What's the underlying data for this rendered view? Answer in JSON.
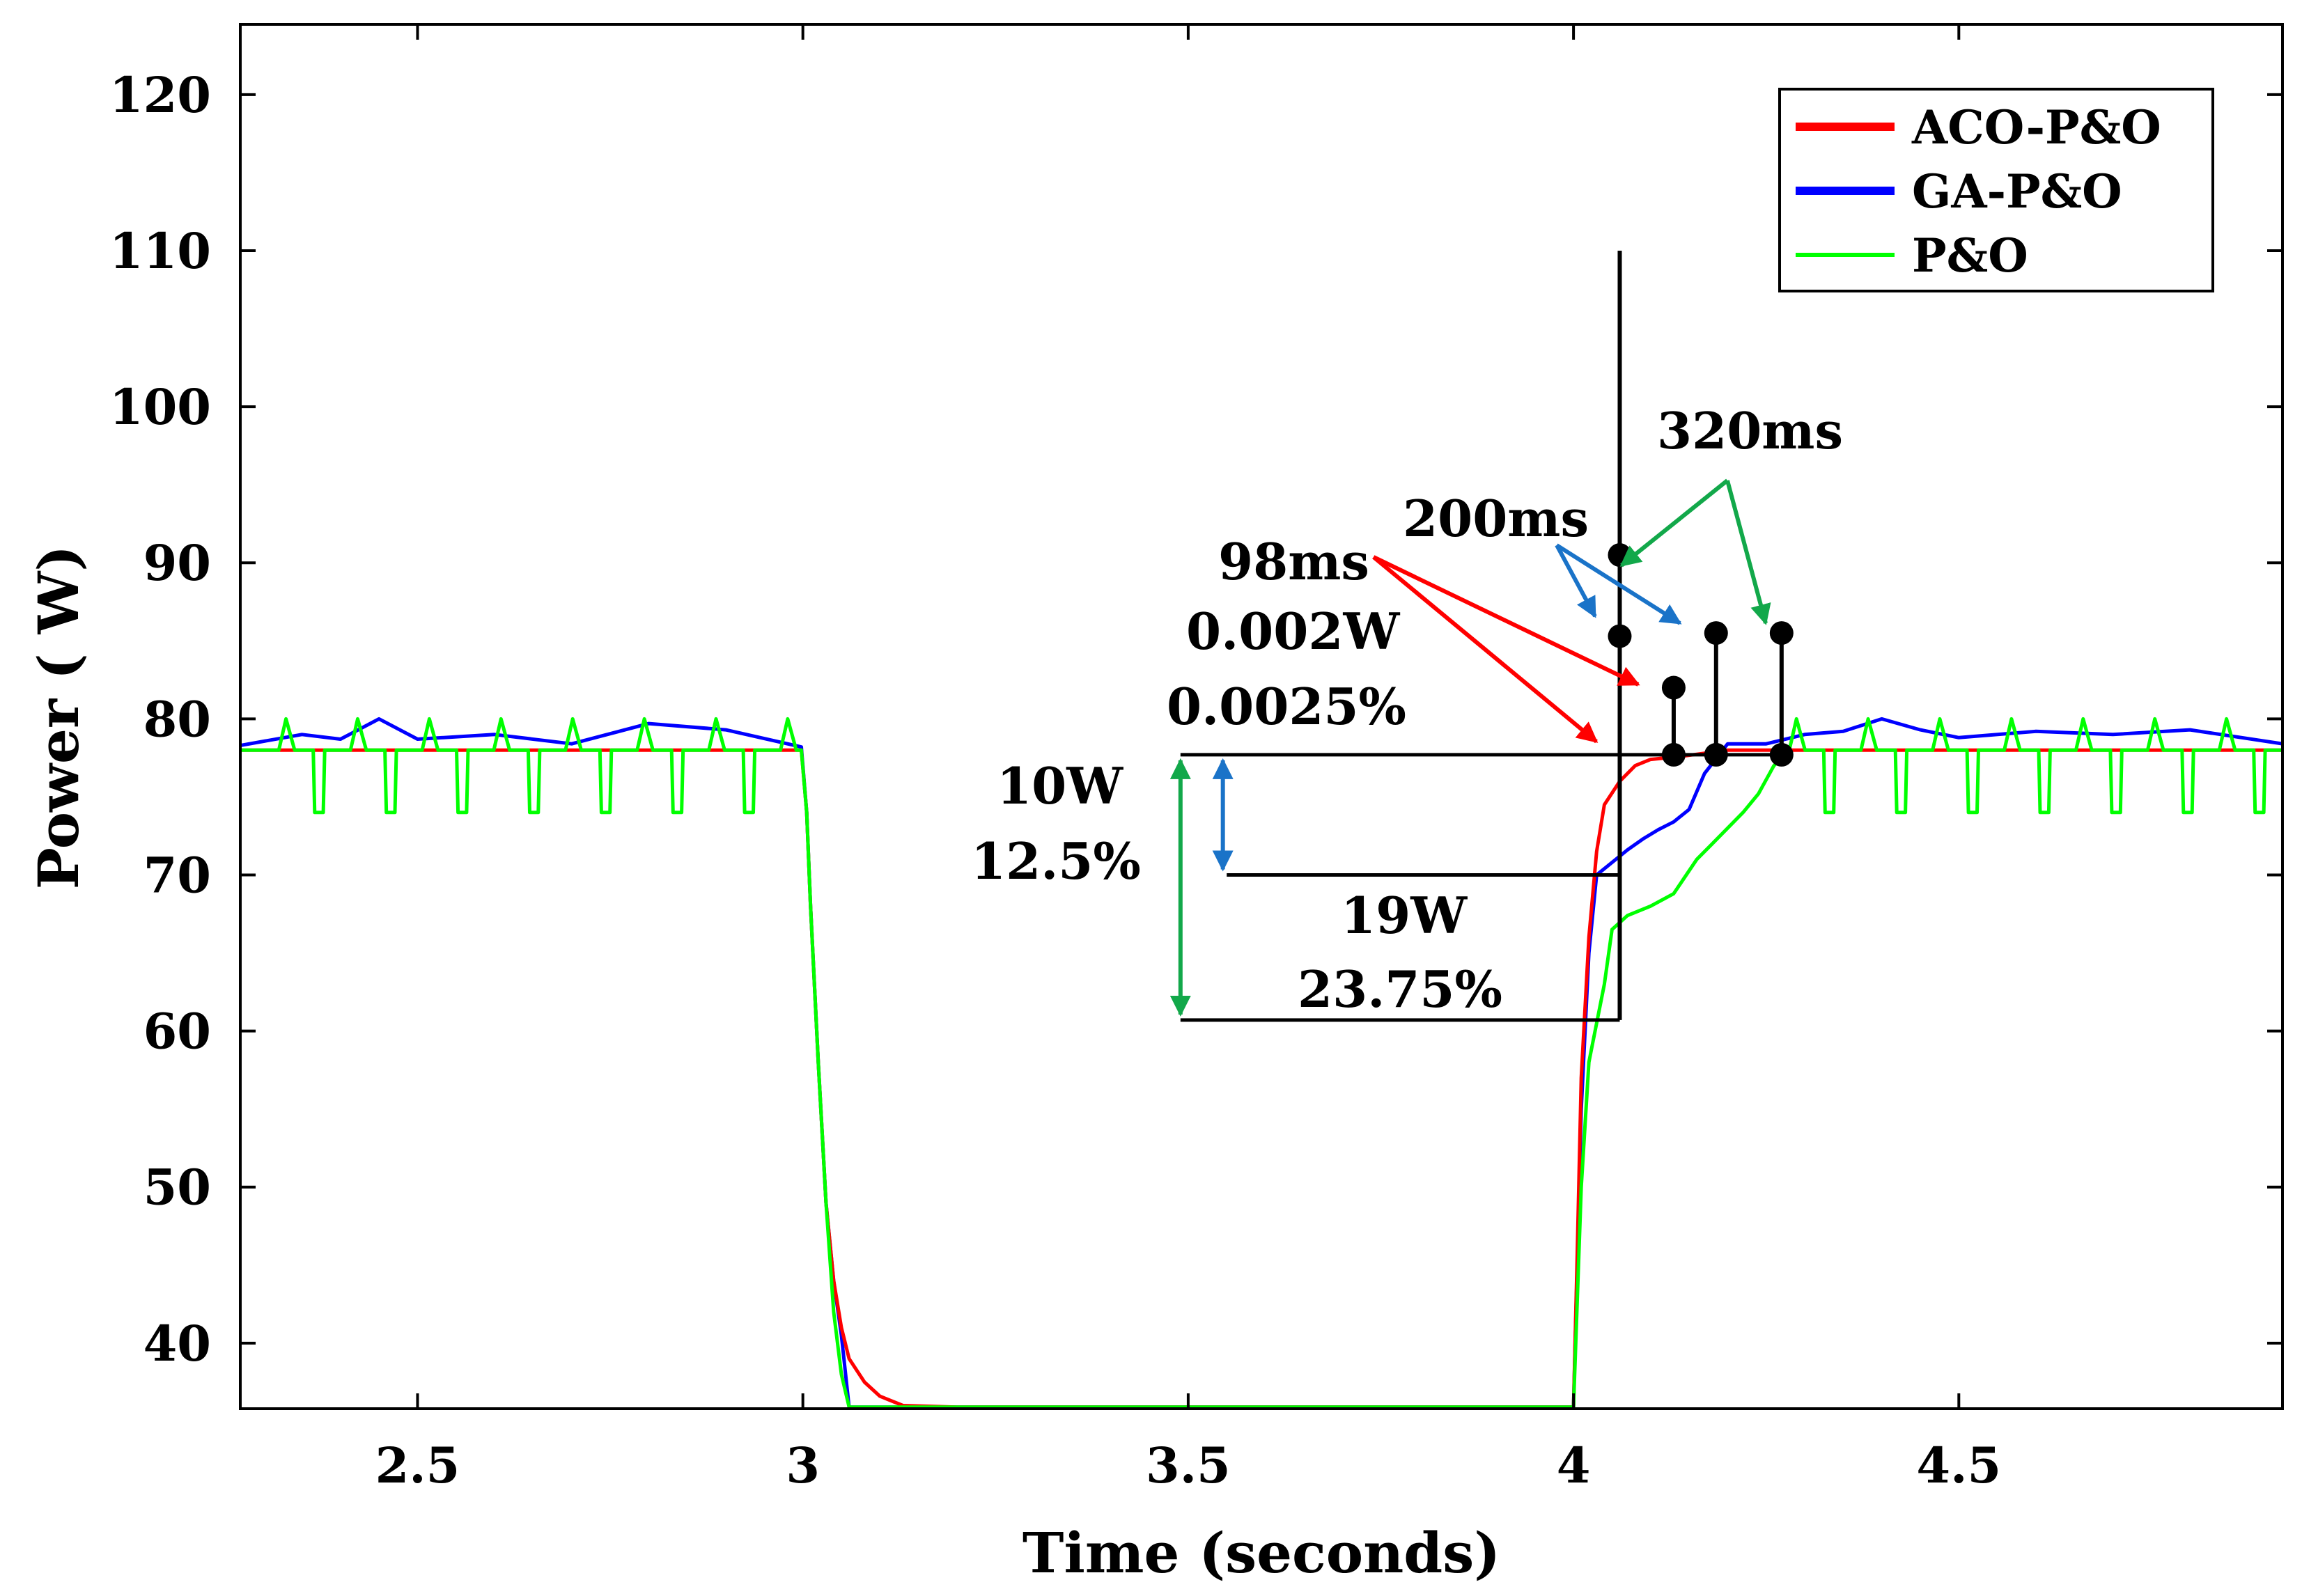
{
  "chart_data": {
    "type": "line",
    "title": "",
    "xlabel": "Time (seconds)",
    "ylabel": "Power ( W)",
    "xlim": [
      2.27,
      4.92
    ],
    "ylim": [
      35.8,
      124.5
    ],
    "xticks": [
      2.5,
      3,
      3.5,
      4,
      4.5
    ],
    "xtick_labels": [
      "2.5",
      "3",
      "3.5",
      "4",
      "4.5"
    ],
    "yticks": [
      40,
      50,
      60,
      70,
      80,
      90,
      100,
      110,
      120
    ],
    "ytick_labels": [
      "40",
      "50",
      "60",
      "70",
      "80",
      "90",
      "100",
      "110",
      "120"
    ],
    "grid": false,
    "legend_position": "top-right",
    "colors": {
      "aco": "#ff0000",
      "ga": "#0000ff",
      "po": "#00ff00",
      "annot_red": "#ff0000",
      "annot_blue": "#1a73c8",
      "annot_green": "#12a84a",
      "markers": "#000000"
    },
    "series": [
      {
        "name": "ACO-P&O",
        "color": "#ff0000",
        "x": [
          2.27,
          2.998,
          3.005,
          3.01,
          3.02,
          3.03,
          3.04,
          3.05,
          3.06,
          3.08,
          3.1,
          3.13,
          3.2,
          3.9,
          4.0,
          4.005,
          4.01,
          4.02,
          4.03,
          4.04,
          4.06,
          4.08,
          4.1,
          4.14,
          4.2,
          4.92
        ],
        "y": [
          78.0,
          78.0,
          74.0,
          68.0,
          58.0,
          49.0,
          44.0,
          41.0,
          39.0,
          37.5,
          36.6,
          36.0,
          35.9,
          35.9,
          35.9,
          46.0,
          57.0,
          66.0,
          71.5,
          74.5,
          76.0,
          77.0,
          77.4,
          77.6,
          78.0,
          78.0
        ]
      },
      {
        "name": "GA-P&O",
        "color": "#0000ff",
        "x": [
          2.27,
          2.35,
          2.4,
          2.45,
          2.5,
          2.6,
          2.7,
          2.8,
          2.9,
          2.998,
          3.005,
          3.01,
          3.02,
          3.03,
          3.04,
          3.05,
          3.06,
          3.9,
          4.0,
          4.01,
          4.02,
          4.03,
          4.05,
          4.07,
          4.09,
          4.11,
          4.13,
          4.15,
          4.17,
          4.2,
          4.25,
          4.3,
          4.35,
          4.4,
          4.45,
          4.5,
          4.6,
          4.7,
          4.8,
          4.92
        ],
        "y": [
          78.3,
          79.0,
          78.7,
          80.0,
          78.7,
          79.0,
          78.4,
          79.7,
          79.3,
          78.2,
          74.0,
          68.0,
          58.0,
          49.0,
          44.0,
          40.5,
          35.9,
          35.9,
          35.9,
          55.0,
          65.0,
          70.0,
          70.8,
          71.6,
          72.3,
          72.9,
          73.4,
          74.2,
          76.5,
          78.4,
          78.4,
          79.0,
          79.2,
          80.0,
          79.3,
          78.8,
          79.2,
          79.0,
          79.3,
          78.4
        ]
      },
      {
        "name": "P&O",
        "color": "#00ff00",
        "x": [
          2.27,
          2.998,
          3.005,
          3.01,
          3.02,
          3.03,
          3.04,
          3.05,
          3.06,
          3.9,
          4.0,
          4.01,
          4.02,
          4.03,
          4.04,
          4.05,
          4.07,
          4.1,
          4.13,
          4.16,
          4.18,
          4.2,
          4.22,
          4.24,
          4.26,
          4.28,
          4.92
        ],
        "y": [
          78.0,
          78.0,
          74.0,
          68.0,
          58.0,
          49.0,
          42.0,
          38.0,
          35.9,
          35.9,
          35.9,
          50.0,
          58.0,
          60.5,
          63.0,
          66.5,
          67.4,
          68.0,
          68.8,
          71.0,
          72.0,
          73.0,
          74.0,
          75.2,
          77.0,
          78.0,
          78.0
        ]
      }
    ],
    "po_oscillation": {
      "description_free": true,
      "peak": 80.0,
      "base": 78.0,
      "trough": 74.0,
      "period": 0.093,
      "before_start": 2.32,
      "before_end": 2.998,
      "after_start": 4.28,
      "after_end": 4.92
    },
    "annotations": {
      "ms98": "98ms",
      "ms200": "200ms",
      "ms320": "320ms",
      "ripple_w": "0.002W",
      "ripple_pct": "0.0025%",
      "drop10_w": "10W",
      "drop10_pct": "12.5%",
      "drop19_w": "19W",
      "drop19_pct": "23.75%"
    },
    "guides": {
      "vertical_x": 4.06,
      "vertical_top": 110,
      "level_mpp": 77.7,
      "level_ga": 70.0,
      "level_po": 60.7,
      "ga_level_x0": 3.55,
      "po_level_x0": 3.49,
      "mpp_level_x0": 3.49,
      "marker_aco_x": 4.13,
      "marker_aco_top": 82.0,
      "marker_ga_x": 4.185,
      "marker_ga_top": 85.5,
      "marker_po_x": 4.27,
      "marker_po_top": 85.5,
      "marker_vert_90": 90.5,
      "marker_vert_85": 85.3
    }
  }
}
